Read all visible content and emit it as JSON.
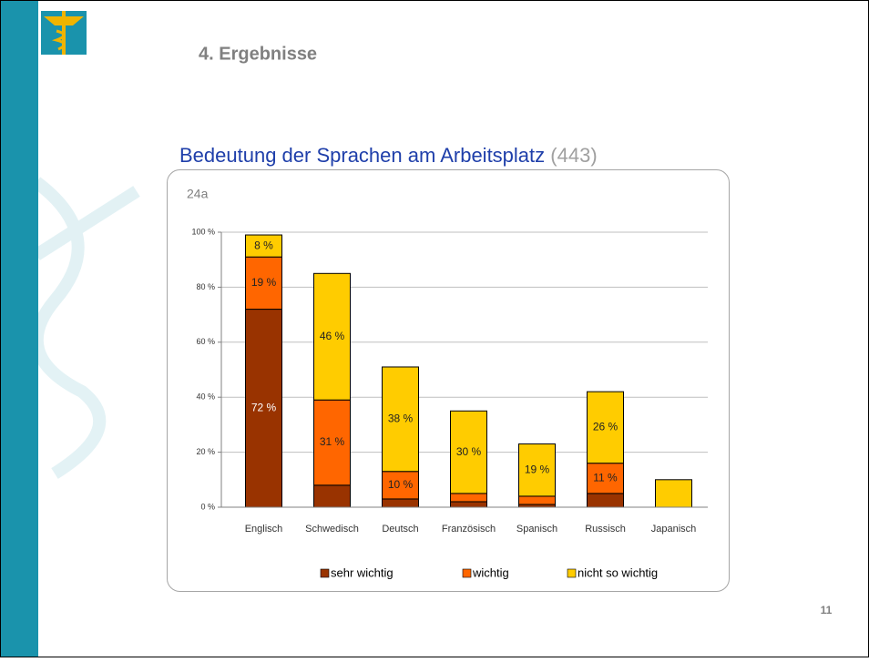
{
  "slide": {
    "heading": "4. Ergebnisse",
    "page_number": "11"
  },
  "chart_data": {
    "type": "stacked_bar",
    "title": "Bedeutung der Sprachen am Arbeitsplatz",
    "subtitle": "(443)",
    "annotation": "24a",
    "categories": [
      "Englisch",
      "Schwedisch",
      "Deutsch",
      "Französisch",
      "Spanisch",
      "Russisch",
      "Japanisch"
    ],
    "series": [
      {
        "name": "sehr wichtig",
        "color": "#993300",
        "values": [
          72,
          8,
          3,
          2,
          1,
          5,
          0
        ],
        "value_labels": [
          "72 %",
          null,
          null,
          null,
          null,
          null,
          null
        ]
      },
      {
        "name": "wichtig",
        "color": "#ff6600",
        "values": [
          19,
          31,
          10,
          3,
          3,
          11,
          0
        ],
        "value_labels": [
          "19 %",
          "31 %",
          "10 %",
          null,
          null,
          "11 %",
          null
        ]
      },
      {
        "name": "nicht so wichtig",
        "color": "#ffcc00",
        "values": [
          8,
          46,
          38,
          30,
          19,
          26,
          10
        ],
        "value_labels": [
          "8 %",
          "46 %",
          "38 %",
          "30 %",
          "19 %",
          "26 %",
          null
        ]
      }
    ],
    "ylim": [
      0,
      100
    ],
    "yticks": [
      {
        "value": 0,
        "label": "0 %"
      },
      {
        "value": 20,
        "label": "20 %"
      },
      {
        "value": 40,
        "label": "40 %"
      },
      {
        "value": 60,
        "label": "60 %"
      },
      {
        "value": 80,
        "label": "80 %"
      },
      {
        "value": 100,
        "label": "100 %"
      }
    ],
    "grid": true,
    "legend": "bottom"
  }
}
